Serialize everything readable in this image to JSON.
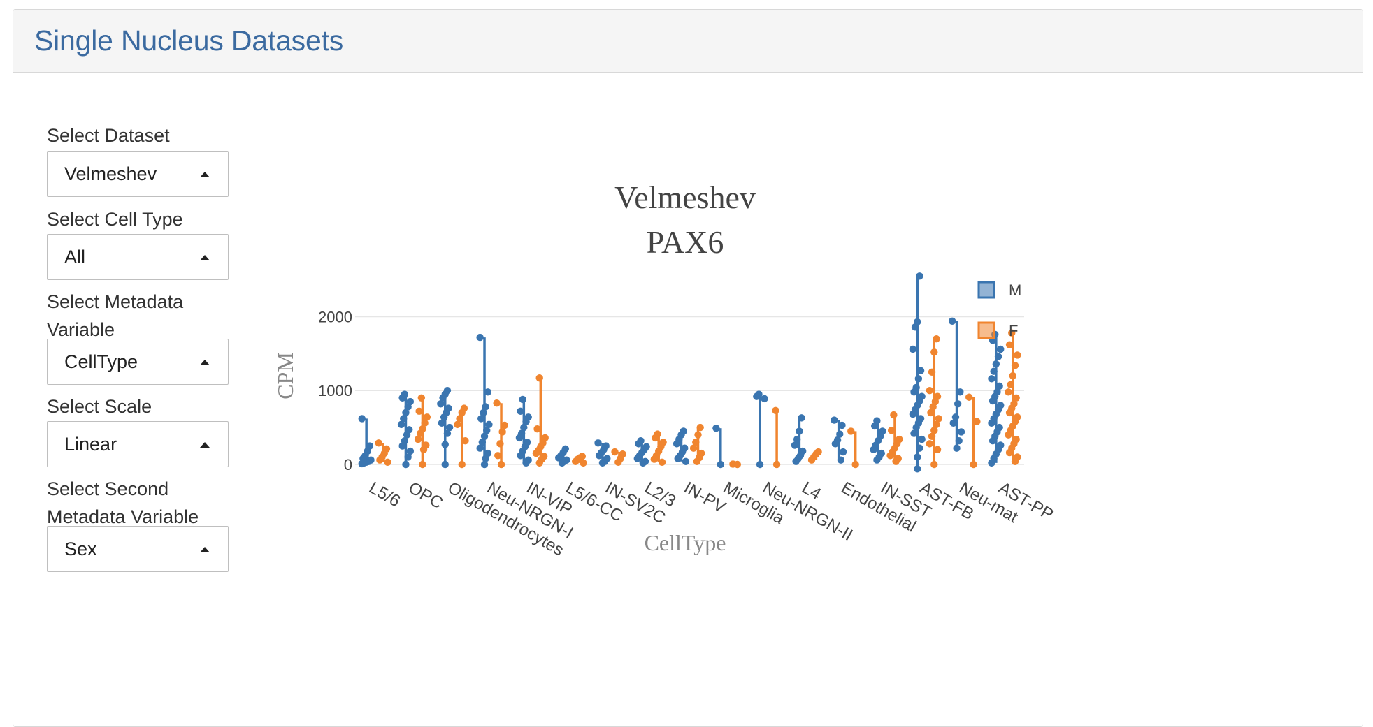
{
  "panel": {
    "title": "Single Nucleus Datasets"
  },
  "controls": [
    {
      "label": "Select Dataset",
      "value": "Velmeshev"
    },
    {
      "label": "Select Cell Type",
      "value": "All"
    },
    {
      "label": "Select Metadata Variable",
      "value": "CellType"
    },
    {
      "label": "Select Scale",
      "value": "Linear"
    },
    {
      "label": "Select Second Metadata Variable",
      "value": "Sex"
    }
  ],
  "chart_data": {
    "type": "scatter",
    "title": "Velmeshev",
    "subtitle": "PAX6",
    "xlabel": "CellType",
    "ylabel": "CPM",
    "ylim": [
      0,
      2600
    ],
    "yticks": [
      0,
      1000,
      2000
    ],
    "grid": true,
    "legend_position": "top-right",
    "categories": [
      "L5/6",
      "OPC",
      "Oligodendrocytes",
      "Neu-NRGN-I",
      "IN-VIP",
      "L5/6-CC",
      "IN-SV2C",
      "L2/3",
      "IN-PV",
      "Microglia",
      "Neu-NRGN-II",
      "L4",
      "Endothelial",
      "IN-SST",
      "AST-FB",
      "Neu-mat",
      "AST-PP"
    ],
    "colors": {
      "M": "#3a75b0",
      "F": "#f0852f"
    },
    "series": [
      {
        "name": "M",
        "values": [
          [
            620,
            250,
            180,
            120,
            80,
            60,
            40,
            30,
            20,
            10
          ],
          [
            950,
            900,
            850,
            780,
            700,
            620,
            540,
            470,
            400,
            320,
            250,
            180,
            100,
            0
          ],
          [
            1000,
            950,
            900,
            820,
            760,
            700,
            640,
            560,
            500,
            420,
            270,
            0
          ],
          [
            1720,
            980,
            780,
            700,
            620,
            540,
            460,
            380,
            300,
            220,
            150,
            80,
            0
          ],
          [
            880,
            720,
            640,
            580,
            500,
            420,
            360,
            300,
            240,
            180,
            120,
            60,
            20
          ],
          [
            210,
            160,
            120,
            90,
            60,
            40,
            20
          ],
          [
            290,
            250,
            200,
            160,
            120,
            80,
            40,
            20
          ],
          [
            320,
            280,
            240,
            200,
            160,
            120,
            80,
            40,
            20
          ],
          [
            450,
            400,
            340,
            280,
            220,
            170,
            120,
            80,
            40
          ],
          [
            490,
            0
          ],
          [
            950,
            920,
            890,
            0
          ],
          [
            630,
            450,
            340,
            260,
            180,
            120,
            80,
            40
          ],
          [
            600,
            530,
            410,
            330,
            280,
            170,
            60
          ],
          [
            590,
            520,
            450,
            380,
            320,
            260,
            200,
            150,
            100,
            60
          ],
          [
            2550,
            1930,
            1860,
            1560,
            1270,
            1160,
            1040,
            980,
            920,
            860,
            800,
            740,
            680,
            620,
            560,
            500,
            420,
            340,
            220,
            100,
            -60
          ],
          [
            1940,
            980,
            820,
            640,
            560,
            440,
            320,
            220
          ],
          [
            1760,
            1680,
            1560,
            1460,
            1360,
            1260,
            1160,
            1060,
            980,
            920,
            860,
            800,
            740,
            680,
            620,
            560,
            500,
            440,
            380,
            320,
            260,
            200,
            140,
            80,
            20
          ]
        ]
      },
      {
        "name": "F",
        "values": [
          [
            290,
            210,
            150,
            100,
            60,
            30
          ],
          [
            900,
            720,
            640,
            560,
            480,
            420,
            340,
            260,
            200,
            0
          ],
          [
            760,
            700,
            620,
            540,
            320,
            0
          ],
          [
            830,
            530,
            440,
            280,
            120,
            0
          ],
          [
            1170,
            480,
            360,
            290,
            240,
            190,
            150,
            110,
            70,
            20
          ],
          [
            110,
            90,
            70,
            40,
            20
          ],
          [
            170,
            140,
            80,
            30
          ],
          [
            410,
            360,
            300,
            240,
            180,
            120,
            70,
            30
          ],
          [
            500,
            400,
            300,
            220,
            150,
            90,
            40
          ],
          [
            5,
            0
          ],
          [
            730,
            0
          ],
          [
            170,
            140,
            100,
            60
          ],
          [
            450,
            0
          ],
          [
            670,
            460,
            340,
            280,
            220,
            170,
            120,
            80,
            40
          ],
          [
            1700,
            1520,
            1250,
            1000,
            920,
            850,
            780,
            700,
            620,
            540,
            460,
            380,
            280,
            200,
            0
          ],
          [
            910,
            580,
            0
          ],
          [
            1780,
            1620,
            1480,
            1340,
            1200,
            1080,
            980,
            900,
            820,
            760,
            700,
            640,
            580,
            520,
            460,
            400,
            340,
            280,
            220,
            160,
            100,
            40
          ]
        ]
      }
    ]
  }
}
